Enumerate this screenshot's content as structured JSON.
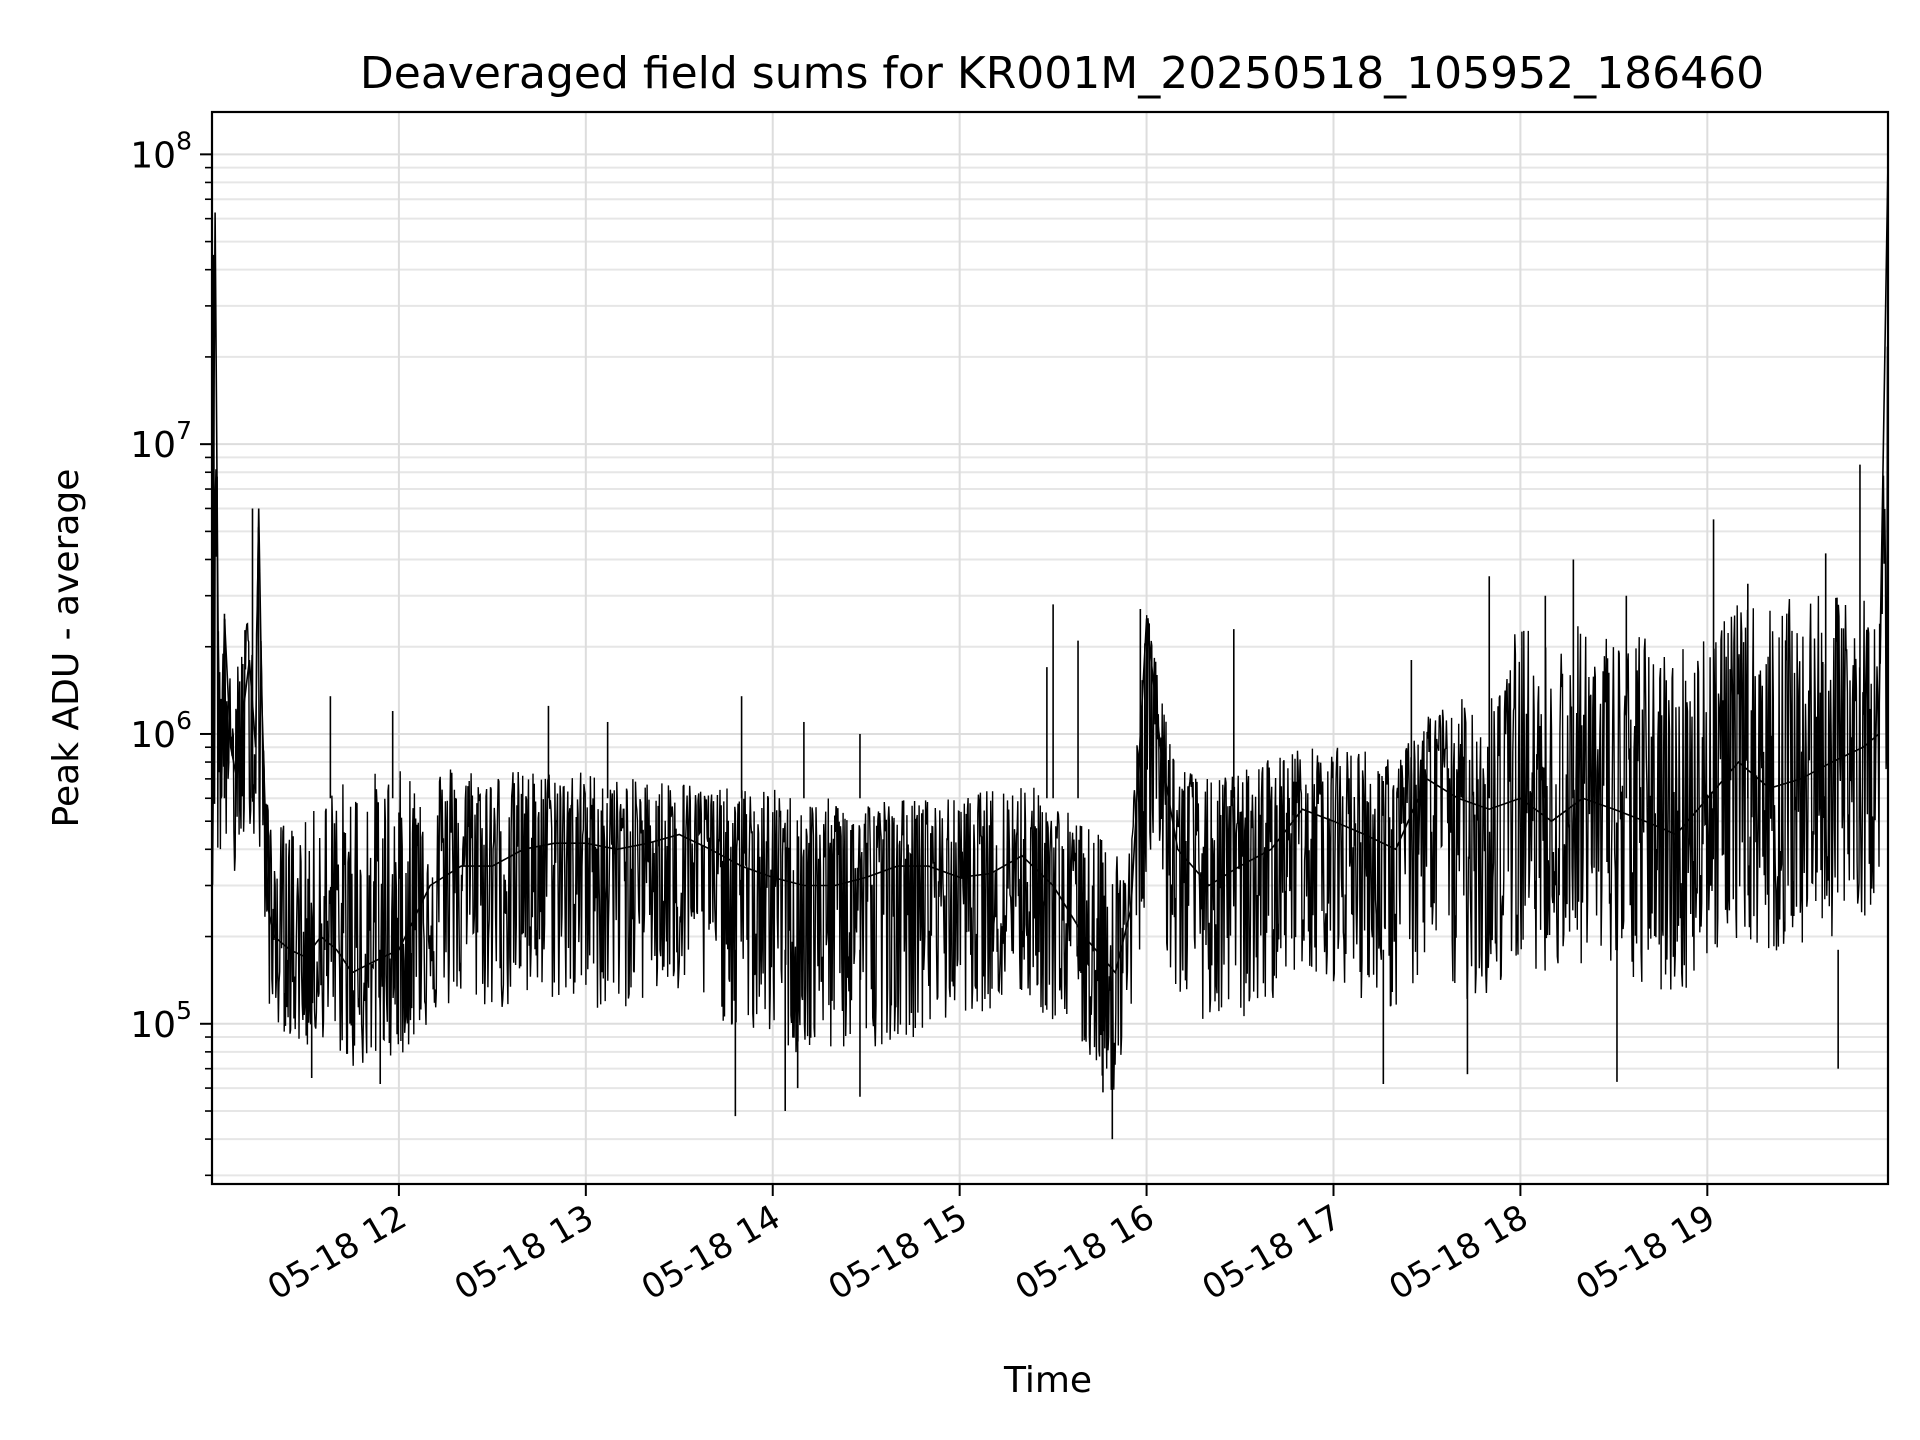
{
  "chart_data": {
    "type": "line",
    "title": "Deaveraged field sums for KR001M_20250518_105952_186460",
    "xlabel": "Time",
    "ylabel": "Peak ADU - average",
    "y_scale": "log",
    "ylim": [
      28000,
      140000000
    ],
    "xlim": [
      "2025-05-18T11:00:00",
      "2025-05-18T19:58:00"
    ],
    "grid": true,
    "line_color": "#000000",
    "x_ticks": [
      {
        "value": "2025-05-18T12:00:00",
        "label": "05-18 12"
      },
      {
        "value": "2025-05-18T13:00:00",
        "label": "05-18 13"
      },
      {
        "value": "2025-05-18T14:00:00",
        "label": "05-18 14"
      },
      {
        "value": "2025-05-18T15:00:00",
        "label": "05-18 15"
      },
      {
        "value": "2025-05-18T16:00:00",
        "label": "05-18 16"
      },
      {
        "value": "2025-05-18T17:00:00",
        "label": "05-18 17"
      },
      {
        "value": "2025-05-18T18:00:00",
        "label": "05-18 18"
      },
      {
        "value": "2025-05-18T19:00:00",
        "label": "05-18 19"
      }
    ],
    "y_ticks": [
      {
        "value": 100000,
        "base": "10",
        "exp": "5"
      },
      {
        "value": 1000000,
        "base": "10",
        "exp": "6"
      },
      {
        "value": 10000000,
        "base": "10",
        "exp": "7"
      },
      {
        "value": 100000000,
        "base": "10",
        "exp": "8"
      }
    ],
    "series": [
      {
        "x": [
          "2025-05-18T11:00:00",
          "2025-05-18T11:01:00",
          "2025-05-18T11:02:00",
          "2025-05-18T11:03:00",
          "2025-05-18T11:04:00",
          "2025-05-18T11:06:00",
          "2025-05-18T11:08:00",
          "2025-05-18T11:10:00",
          "2025-05-18T11:12:00",
          "2025-05-18T11:14:00",
          "2025-05-18T11:15:00",
          "2025-05-18T11:16:00",
          "2025-05-18T11:18:00",
          "2025-05-18T11:20:00",
          "2025-05-18T11:25:00",
          "2025-05-18T11:30:00",
          "2025-05-18T11:35:00",
          "2025-05-18T11:40:00",
          "2025-05-18T11:45:00",
          "2025-05-18T11:50:00",
          "2025-05-18T11:55:00",
          "2025-05-18T12:00:00",
          "2025-05-18T12:10:00",
          "2025-05-18T12:20:00",
          "2025-05-18T12:30:00",
          "2025-05-18T12:40:00",
          "2025-05-18T12:50:00",
          "2025-05-18T13:00:00",
          "2025-05-18T13:10:00",
          "2025-05-18T13:20:00",
          "2025-05-18T13:30:00",
          "2025-05-18T13:40:00",
          "2025-05-18T13:50:00",
          "2025-05-18T14:00:00",
          "2025-05-18T14:10:00",
          "2025-05-18T14:20:00",
          "2025-05-18T14:30:00",
          "2025-05-18T14:40:00",
          "2025-05-18T14:50:00",
          "2025-05-18T15:00:00",
          "2025-05-18T15:10:00",
          "2025-05-18T15:20:00",
          "2025-05-18T15:30:00",
          "2025-05-18T15:40:00",
          "2025-05-18T15:50:00",
          "2025-05-18T15:55:00",
          "2025-05-18T16:00:00",
          "2025-05-18T16:05:00",
          "2025-05-18T16:10:00",
          "2025-05-18T16:20:00",
          "2025-05-18T16:30:00",
          "2025-05-18T16:40:00",
          "2025-05-18T16:50:00",
          "2025-05-18T17:00:00",
          "2025-05-18T17:10:00",
          "2025-05-18T17:20:00",
          "2025-05-18T17:30:00",
          "2025-05-18T17:40:00",
          "2025-05-18T17:50:00",
          "2025-05-18T18:00:00",
          "2025-05-18T18:10:00",
          "2025-05-18T18:20:00",
          "2025-05-18T18:30:00",
          "2025-05-18T18:40:00",
          "2025-05-18T18:50:00",
          "2025-05-18T19:00:00",
          "2025-05-18T19:10:00",
          "2025-05-18T19:20:00",
          "2025-05-18T19:30:00",
          "2025-05-18T19:40:00",
          "2025-05-18T19:50:00",
          "2025-05-18T19:55:00",
          "2025-05-18T19:58:00"
        ],
        "y": [
          900000,
          63000000,
          2000000,
          600000,
          2500000,
          900000,
          700000,
          1200000,
          1800000,
          900000,
          6000000,
          1300000,
          250000,
          200000,
          180000,
          170000,
          200000,
          180000,
          150000,
          160000,
          170000,
          180000,
          300000,
          350000,
          350000,
          400000,
          420000,
          420000,
          400000,
          420000,
          450000,
          400000,
          350000,
          320000,
          300000,
          300000,
          320000,
          350000,
          350000,
          320000,
          330000,
          380000,
          300000,
          200000,
          150000,
          250000,
          2500000,
          800000,
          400000,
          300000,
          350000,
          400000,
          550000,
          500000,
          450000,
          400000,
          700000,
          600000,
          550000,
          600000,
          500000,
          600000,
          550000,
          500000,
          450000,
          600000,
          800000,
          650000,
          700000,
          800000,
          900000,
          1000000,
          95000000
        ],
        "band": {
          "lower": [
            300000,
            300000,
            300000,
            400000,
            400000,
            300000,
            300000,
            400000,
            500000,
            400000,
            300000,
            250000,
            120000,
            100000,
            90000,
            80000,
            90000,
            80000,
            70000,
            70000,
            80000,
            75000,
            100000,
            120000,
            110000,
            110000,
            120000,
            110000,
            110000,
            120000,
            120000,
            110000,
            90000,
            90000,
            70000,
            80000,
            80000,
            90000,
            90000,
            110000,
            110000,
            120000,
            100000,
            80000,
            55000,
            90000,
            300000,
            200000,
            120000,
            100000,
            100000,
            120000,
            160000,
            140000,
            120000,
            110000,
            150000,
            120000,
            120000,
            160000,
            150000,
            160000,
            140000,
            130000,
            120000,
            160000,
            200000,
            170000,
            180000,
            200000,
            220000,
            300000,
            700000
          ],
          "upper": [
            2000000,
            63000000,
            2700000,
            2500000,
            2600000,
            1500000,
            1700000,
            2200000,
            2800000,
            1800000,
            6000000,
            1500000,
            550000,
            500000,
            500000,
            500000,
            600000,
            700000,
            700000,
            750000,
            750000,
            750000,
            800000,
            800000,
            750000,
            750000,
            750000,
            750000,
            700000,
            700000,
            700000,
            650000,
            650000,
            650000,
            600000,
            600000,
            600000,
            600000,
            600000,
            600000,
            650000,
            700000,
            600000,
            500000,
            400000,
            500000,
            2700000,
            1400000,
            800000,
            700000,
            750000,
            850000,
            900000,
            900000,
            900000,
            800000,
            1200000,
            1300000,
            1500000,
            2500000,
            2000000,
            2500000,
            2200000,
            2200000,
            2000000,
            2500000,
            2800000,
            2800000,
            3000000,
            3000000,
            3000000,
            2500000,
            2000000
          ]
        },
        "spikes": [
          {
            "x": "2025-05-18T11:00:30",
            "y": 45000000
          },
          {
            "x": "2025-05-18T11:04:00",
            "y": 2600000
          },
          {
            "x": "2025-05-18T11:13:00",
            "y": 6000000
          },
          {
            "x": "2025-05-18T11:38:00",
            "y": 1350000
          },
          {
            "x": "2025-05-18T11:58:00",
            "y": 1200000
          },
          {
            "x": "2025-05-18T12:48:00",
            "y": 1250000
          },
          {
            "x": "2025-05-18T13:07:00",
            "y": 1100000
          },
          {
            "x": "2025-05-18T13:50:00",
            "y": 1350000
          },
          {
            "x": "2025-05-18T14:10:00",
            "y": 1100000
          },
          {
            "x": "2025-05-18T14:28:00",
            "y": 1000000
          },
          {
            "x": "2025-05-18T15:28:00",
            "y": 1700000
          },
          {
            "x": "2025-05-18T15:30:00",
            "y": 2800000
          },
          {
            "x": "2025-05-18T15:38:00",
            "y": 2100000
          },
          {
            "x": "2025-05-18T15:58:00",
            "y": 2700000
          },
          {
            "x": "2025-05-18T16:28:00",
            "y": 2300000
          },
          {
            "x": "2025-05-18T17:25:00",
            "y": 1800000
          },
          {
            "x": "2025-05-18T17:50:00",
            "y": 3500000
          },
          {
            "x": "2025-05-18T18:08:00",
            "y": 3000000
          },
          {
            "x": "2025-05-18T18:17:00",
            "y": 4000000
          },
          {
            "x": "2025-05-18T18:34:00",
            "y": 3000000
          },
          {
            "x": "2025-05-18T19:02:00",
            "y": 5500000
          },
          {
            "x": "2025-05-18T19:13:00",
            "y": 3300000
          },
          {
            "x": "2025-05-18T19:38:00",
            "y": 4200000
          },
          {
            "x": "2025-05-18T19:49:00",
            "y": 8500000
          },
          {
            "x": "2025-05-18T11:54:00",
            "y": 62000
          },
          {
            "x": "2025-05-18T11:32:00",
            "y": 65000
          },
          {
            "x": "2025-05-18T13:48:00",
            "y": 48000
          },
          {
            "x": "2025-05-18T14:04:00",
            "y": 50000
          },
          {
            "x": "2025-05-18T14:08:00",
            "y": 60000
          },
          {
            "x": "2025-05-18T14:28:00",
            "y": 56000
          },
          {
            "x": "2025-05-18T15:46:00",
            "y": 58000
          },
          {
            "x": "2025-05-18T15:49:00",
            "y": 40000
          },
          {
            "x": "2025-05-18T17:16:00",
            "y": 62000
          },
          {
            "x": "2025-05-18T17:43:00",
            "y": 67000
          },
          {
            "x": "2025-05-18T18:31:00",
            "y": 63000
          },
          {
            "x": "2025-05-18T19:42:00",
            "y": 70000
          }
        ]
      }
    ]
  }
}
